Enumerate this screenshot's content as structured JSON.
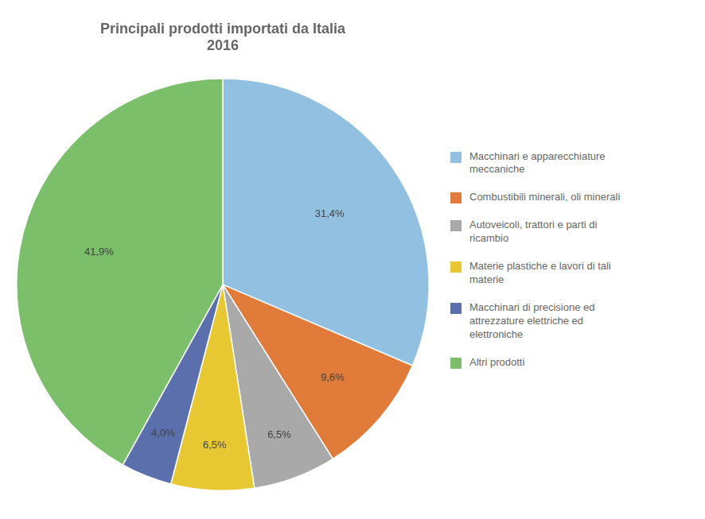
{
  "chart_data": {
    "type": "pie",
    "title": "Principali prodotti importati da Italia\n2016",
    "categories": [
      "Macchinari e apparecchiature\nmeccaniche",
      "Combustibili minerali, oli minerali",
      "Autoveicoli, trattori e parti di\nricambio",
      "Materie plastiche e lavori di tali\nmaterie",
      "Macchinari di precisione ed\nattrezzature elettriche ed\nelettroniche",
      "Altri prodotti"
    ],
    "values": [
      31.4,
      9.6,
      6.5,
      6.5,
      4.0,
      41.9
    ],
    "value_labels": [
      "31,4%",
      "9,6%",
      "6,5%",
      "6,5%",
      "4,0%",
      "41,9%"
    ],
    "colors": [
      "#92C0E0",
      "#E07B39",
      "#A9A9A9",
      "#E8C832",
      "#5B6FAD",
      "#7BBF6A"
    ],
    "data_labels": true,
    "legend": "right"
  }
}
